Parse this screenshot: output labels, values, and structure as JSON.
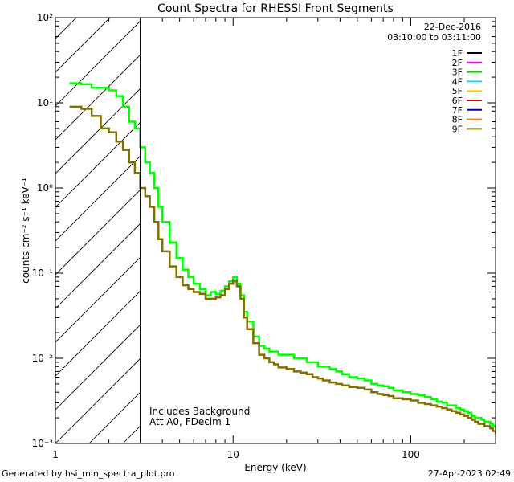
{
  "chart_data": {
    "type": "line",
    "title": "Count Spectra for RHESSI Front Segments",
    "xlabel": "Energy (keV)",
    "ylabel": "counts cm⁻² s⁻¹ keV⁻¹",
    "xscale": "log",
    "yscale": "log",
    "xlim": [
      1,
      300
    ],
    "ylim": [
      0.001,
      100
    ],
    "x_tick_labels": [
      "1",
      "10",
      "100"
    ],
    "y_tick_labels": [
      "10⁻³",
      "10⁻²",
      "10⁻¹",
      "10⁰",
      "10¹",
      "10²"
    ],
    "date": "22-Dec-2016",
    "time_range": "03:10:00 to 03:11:00",
    "legend_position": "top-right",
    "legend": [
      {
        "label": "1F",
        "color": "#000000"
      },
      {
        "label": "2F",
        "color": "#ff00ff"
      },
      {
        "label": "3F",
        "color": "#00e000"
      },
      {
        "label": "4F",
        "color": "#00e0ff"
      },
      {
        "label": "5F",
        "color": "#ffd000"
      },
      {
        "label": "6F",
        "color": "#e00000"
      },
      {
        "label": "7F",
        "color": "#0000c0"
      },
      {
        "label": "8F",
        "color": "#ff8000"
      },
      {
        "label": "9F",
        "color": "#807000"
      }
    ],
    "hatched_region_keV": [
      1,
      3
    ],
    "annotations": [
      "Includes Background",
      "Att A0, FDecim 1"
    ],
    "series": [
      {
        "name": "3F",
        "color": "#00ff00",
        "x": [
          1.2,
          1.4,
          1.6,
          1.8,
          2.0,
          2.2,
          2.4,
          2.6,
          2.8,
          3.0,
          3.2,
          3.4,
          3.6,
          3.8,
          4.0,
          4.4,
          4.8,
          5.2,
          5.6,
          6.0,
          6.5,
          7.0,
          7.5,
          8.0,
          8.5,
          9.0,
          9.5,
          10.0,
          10.5,
          11.0,
          11.5,
          12.0,
          13.0,
          14.0,
          15.0,
          16.0,
          17.0,
          18.0,
          20.0,
          22.0,
          24.0,
          26.0,
          28.0,
          30.0,
          32.0,
          35.0,
          38.0,
          41.0,
          45.0,
          50.0,
          55.0,
          60.0,
          65.0,
          70.0,
          75.0,
          80.0,
          90.0,
          100.0,
          110.0,
          120.0,
          130.0,
          140.0,
          150.0,
          160.0,
          170.0,
          180.0,
          190.0,
          200.0,
          210.0,
          220.0,
          230.0,
          240.0,
          250.0,
          260.0,
          270.0,
          280.0,
          290.0,
          300.0
        ],
        "values": [
          17,
          16.5,
          15,
          15,
          14,
          12,
          9,
          6,
          5,
          3,
          2,
          1.5,
          1,
          0.6,
          0.4,
          0.23,
          0.15,
          0.11,
          0.09,
          0.075,
          0.065,
          0.055,
          0.06,
          0.057,
          0.062,
          0.07,
          0.08,
          0.09,
          0.075,
          0.055,
          0.035,
          0.027,
          0.018,
          0.014,
          0.013,
          0.012,
          0.012,
          0.011,
          0.011,
          0.01,
          0.01,
          0.009,
          0.009,
          0.008,
          0.008,
          0.0075,
          0.007,
          0.0065,
          0.006,
          0.0058,
          0.0055,
          0.005,
          0.0048,
          0.0047,
          0.0045,
          0.0042,
          0.004,
          0.0038,
          0.0037,
          0.0035,
          0.0033,
          0.0031,
          0.003,
          0.0028,
          0.0028,
          0.0026,
          0.0025,
          0.0024,
          0.0023,
          0.0021,
          0.002,
          0.002,
          0.0019,
          0.0018,
          0.0018,
          0.0017,
          0.0016,
          0.0015
        ]
      },
      {
        "name": "9F",
        "color": "#807000",
        "x": [
          1.2,
          1.4,
          1.6,
          1.8,
          2.0,
          2.2,
          2.4,
          2.6,
          2.8,
          3.0,
          3.2,
          3.4,
          3.6,
          3.8,
          4.0,
          4.4,
          4.8,
          5.2,
          5.6,
          6.0,
          6.5,
          7.0,
          7.5,
          8.0,
          8.5,
          9.0,
          9.5,
          10.0,
          10.5,
          11.0,
          11.5,
          12.0,
          13.0,
          14.0,
          15.0,
          16.0,
          17.0,
          18.0,
          20.0,
          22.0,
          24.0,
          26.0,
          28.0,
          30.0,
          32.0,
          35.0,
          38.0,
          41.0,
          45.0,
          50.0,
          55.0,
          60.0,
          65.0,
          70.0,
          75.0,
          80.0,
          90.0,
          100.0,
          110.0,
          120.0,
          130.0,
          140.0,
          150.0,
          160.0,
          170.0,
          180.0,
          190.0,
          200.0,
          210.0,
          220.0,
          230.0,
          240.0,
          250.0,
          260.0,
          270.0,
          280.0,
          290.0,
          300.0
        ],
        "values": [
          9,
          8.5,
          7,
          5,
          4.5,
          3.5,
          2.8,
          2,
          1.5,
          1,
          0.8,
          0.6,
          0.4,
          0.25,
          0.18,
          0.12,
          0.09,
          0.072,
          0.065,
          0.06,
          0.057,
          0.05,
          0.05,
          0.052,
          0.055,
          0.065,
          0.075,
          0.08,
          0.07,
          0.05,
          0.03,
          0.022,
          0.015,
          0.011,
          0.01,
          0.009,
          0.0085,
          0.0078,
          0.0075,
          0.007,
          0.0068,
          0.0065,
          0.006,
          0.0058,
          0.0055,
          0.0052,
          0.005,
          0.0048,
          0.0046,
          0.0045,
          0.0043,
          0.004,
          0.0038,
          0.0037,
          0.0036,
          0.0034,
          0.0033,
          0.0032,
          0.003,
          0.0029,
          0.0028,
          0.0027,
          0.0026,
          0.0025,
          0.0024,
          0.0023,
          0.0022,
          0.0021,
          0.002,
          0.0019,
          0.0018,
          0.0017,
          0.0017,
          0.0016,
          0.0016,
          0.0015,
          0.0014,
          0.0013
        ]
      }
    ]
  },
  "footer": {
    "left": "Generated by hsi_min_spectra_plot.pro",
    "right": "27-Apr-2023 02:49"
  }
}
